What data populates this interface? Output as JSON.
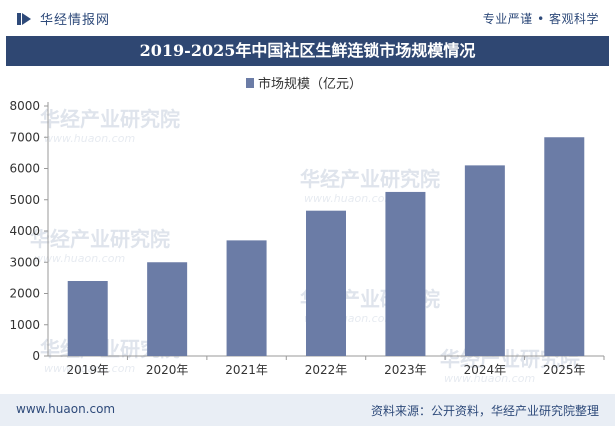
{
  "header": {
    "brand": "华经情报网",
    "slogan": "专业严谨 • 客观科学"
  },
  "chart_data": {
    "type": "bar",
    "title": "2019-2025年中国社区生鲜连锁市场规模情况",
    "categories": [
      "2019年",
      "2020年",
      "2021年",
      "2022年",
      "2023年",
      "2024年",
      "2025年"
    ],
    "series": [
      {
        "name": "市场规模（亿元）",
        "values": [
          2400,
          3000,
          3700,
          4650,
          5250,
          6100,
          7000
        ],
        "color": "#6b7ca6"
      }
    ],
    "ylim": [
      0,
      8000
    ],
    "yticks": [
      0,
      1000,
      2000,
      3000,
      4000,
      5000,
      6000,
      7000,
      8000
    ],
    "grid": false,
    "legend": "top-center"
  },
  "watermark": {
    "text": "华经产业研究院",
    "sub": "www.huaon.com"
  },
  "footer": {
    "site": "www.huaon.com",
    "source": "资料来源：公开资料，华经产业研究院整理"
  }
}
